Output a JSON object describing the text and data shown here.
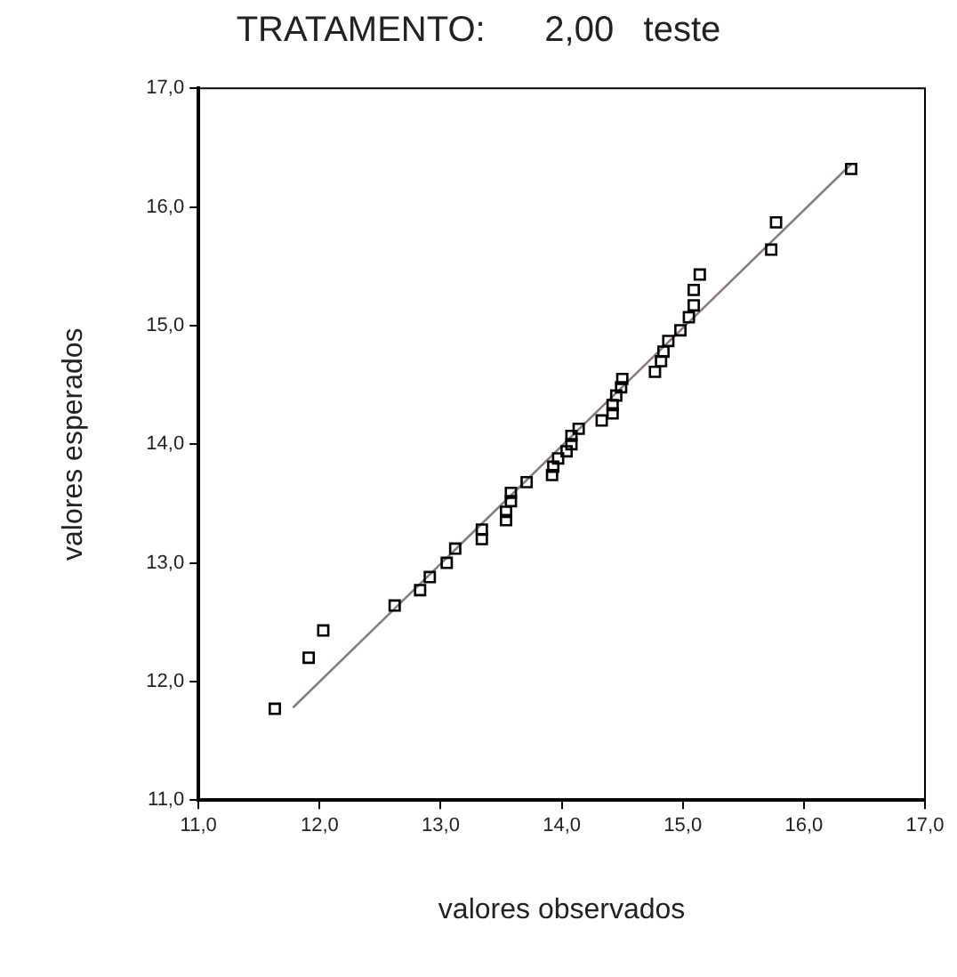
{
  "chart_data": {
    "type": "scatter",
    "title": "TRATAMENTO:      2,00   teste",
    "xlabel": "valores observados",
    "ylabel": "valores esperados",
    "xlim": [
      11,
      17
    ],
    "ylim": [
      11,
      17
    ],
    "xticks": [
      {
        "value": 11,
        "label": "11,0"
      },
      {
        "value": 12,
        "label": "12,0"
      },
      {
        "value": 13,
        "label": "13,0"
      },
      {
        "value": 14,
        "label": "14,0"
      },
      {
        "value": 15,
        "label": "15,0"
      },
      {
        "value": 16,
        "label": "16,0"
      },
      {
        "value": 17,
        "label": "17,0"
      }
    ],
    "yticks": [
      {
        "value": 11,
        "label": "11,0"
      },
      {
        "value": 12,
        "label": "12,0"
      },
      {
        "value": 13,
        "label": "13,0"
      },
      {
        "value": 14,
        "label": "14,0"
      },
      {
        "value": 15,
        "label": "15,0"
      },
      {
        "value": 16,
        "label": "16,0"
      },
      {
        "value": 17,
        "label": "17,0"
      }
    ],
    "grid": false,
    "legend": false,
    "marker": "square",
    "series": [
      {
        "type": "scatter",
        "color": "#000000",
        "x": [
          11.63,
          11.91,
          12.03,
          12.62,
          12.83,
          12.91,
          13.05,
          13.12,
          13.34,
          13.34,
          13.54,
          13.54,
          13.58,
          13.58,
          13.71,
          13.92,
          13.93,
          13.97,
          14.04,
          14.08,
          14.08,
          14.14,
          14.33,
          14.42,
          14.42,
          14.45,
          14.49,
          14.5,
          14.77,
          14.82,
          14.84,
          14.88,
          14.98,
          15.05,
          15.09,
          15.09,
          15.14,
          15.73,
          15.77,
          16.39
        ],
        "values": [
          11.77,
          12.2,
          12.43,
          12.64,
          12.77,
          12.88,
          13.0,
          13.12,
          13.2,
          13.28,
          13.36,
          13.43,
          13.52,
          13.59,
          13.68,
          13.74,
          13.81,
          13.88,
          13.94,
          14.0,
          14.07,
          14.13,
          14.2,
          14.26,
          14.33,
          14.41,
          14.48,
          14.55,
          14.61,
          14.7,
          14.78,
          14.87,
          14.96,
          15.07,
          15.17,
          15.3,
          15.43,
          15.64,
          15.87,
          16.32
        ]
      },
      {
        "type": "line",
        "color": "#8c7b7b",
        "marker": "none",
        "line_style": "solid",
        "x": [
          11.78,
          16.39
        ],
        "values": [
          11.78,
          16.36
        ]
      }
    ]
  }
}
